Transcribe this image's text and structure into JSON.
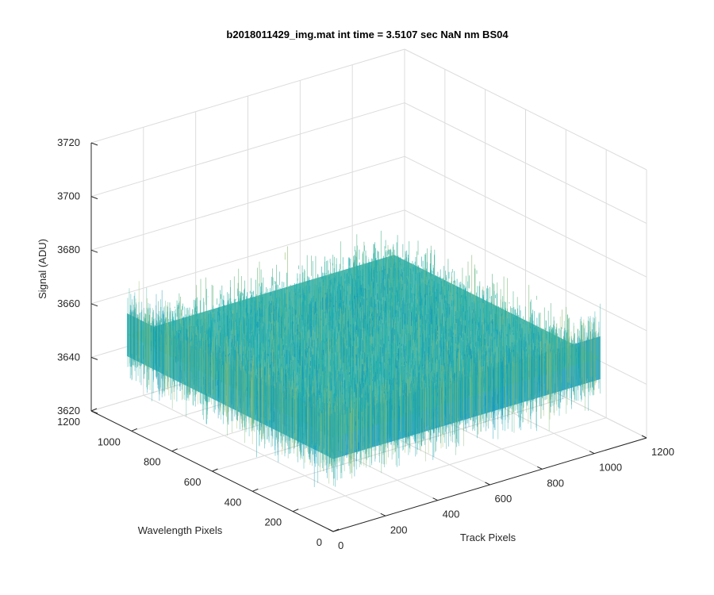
{
  "chart_data": {
    "type": "surface",
    "title": "b2018011429_img.mat int time = 3.5107 sec  NaN nm BS04",
    "xlabel": "Track Pixels",
    "ylabel": "Wavelength Pixels",
    "zlabel": "Signal (ADU)",
    "xlim": [
      0,
      1200
    ],
    "ylim": [
      0,
      1200
    ],
    "zlim": [
      3620,
      3720
    ],
    "x_ticks": [
      0,
      200,
      400,
      600,
      800,
      1000,
      1200
    ],
    "y_ticks": [
      0,
      200,
      400,
      600,
      800,
      1000,
      1200
    ],
    "z_ticks": [
      3620,
      3640,
      3660,
      3680,
      3700,
      3720
    ],
    "x_range_data": [
      1,
      1024
    ],
    "y_range_data": [
      1,
      1024
    ],
    "signal_mean": 3655,
    "signal_min": 3622,
    "signal_max": 3712,
    "grid": true,
    "colormap": "parula",
    "colors": {
      "low": "#0072bd",
      "mid": "#1fb0b0",
      "high": "#e6c84a",
      "grid": "#dcdcdc",
      "axis": "#262626"
    }
  }
}
